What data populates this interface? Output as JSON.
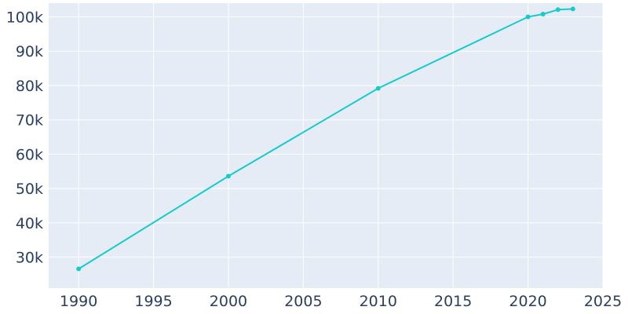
{
  "chart_data": {
    "type": "line",
    "title": "",
    "xlabel": "",
    "ylabel": "",
    "xlim": [
      1988,
      2025
    ],
    "ylim": [
      21000,
      104000
    ],
    "x_ticks": [
      1990,
      1995,
      2000,
      2005,
      2010,
      2015,
      2020,
      2025
    ],
    "x_tick_labels": [
      "1990",
      "1995",
      "2000",
      "2005",
      "2010",
      "2015",
      "2020",
      "2025"
    ],
    "y_ticks": [
      30000,
      40000,
      50000,
      60000,
      70000,
      80000,
      90000,
      100000
    ],
    "y_tick_labels": [
      "30k",
      "40k",
      "50k",
      "60k",
      "70k",
      "80k",
      "90k",
      "100k"
    ],
    "grid": true,
    "series": [
      {
        "x": [
          1990,
          2000,
          2010,
          2020,
          2021,
          2022,
          2023
        ],
        "y": [
          26600,
          53600,
          79200,
          100000,
          100800,
          102100,
          102300
        ]
      }
    ]
  },
  "style": {
    "plot_bg": "#e5ecf6",
    "grid_color": "#ffffff",
    "line_color": "#17cbcb",
    "tick_color": "#2a3f5f"
  }
}
